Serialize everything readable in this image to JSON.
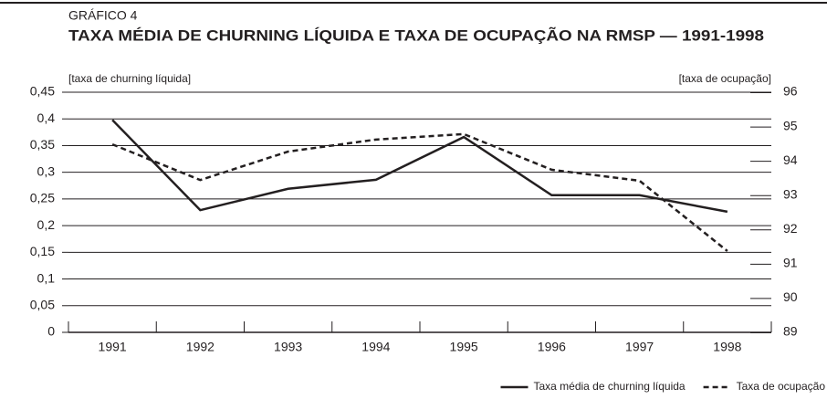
{
  "chart_data": {
    "type": "line",
    "kicker": "GRÁFICO 4",
    "title": "TAXA MÉDIA DE CHURNING LÍQUIDA E TAXA DE OCUPAÇÃO NA RMSP — 1991-1998",
    "ylabel": "[taxa de churning líquida]",
    "y2label": "[taxa de ocupação]",
    "categories": [
      "1991",
      "1992",
      "1993",
      "1994",
      "1995",
      "1996",
      "1997",
      "1998"
    ],
    "series": [
      {
        "name": "Taxa média de churning líquida",
        "color": "#231f20",
        "dash": false,
        "values": [
          0.398,
          0.229,
          0.269,
          0.286,
          0.366,
          0.257,
          0.257,
          0.226
        ]
      },
      {
        "name": "Taxa de ocupação",
        "color": "#231f20",
        "dash": true,
        "axis": "y2",
        "values": [
          94.48,
          93.44,
          94.27,
          94.62,
          94.78,
          93.74,
          93.42,
          91.37
        ]
      }
    ],
    "ylim": [
      0,
      0.45
    ],
    "yticks": [
      0,
      {
        "value": 0.05,
        "label": "0,05"
      },
      {
        "value": 0.1,
        "label": "0,1"
      },
      {
        "value": 0.15,
        "label": "0,15"
      },
      {
        "value": 0.2,
        "label": "0,2"
      },
      {
        "value": 0.25,
        "label": "0,25"
      },
      {
        "value": 0.3,
        "label": "0,3"
      },
      {
        "value": 0.35,
        "label": "0,35"
      },
      {
        "value": 0.4,
        "label": "0,4"
      },
      {
        "value": 0.45,
        "label": "0,45"
      }
    ],
    "y2lim": [
      89,
      96
    ],
    "y2ticks": [
      89,
      90,
      91,
      92,
      93,
      94,
      95,
      96
    ],
    "grid": true,
    "legend": "bottom-right"
  }
}
